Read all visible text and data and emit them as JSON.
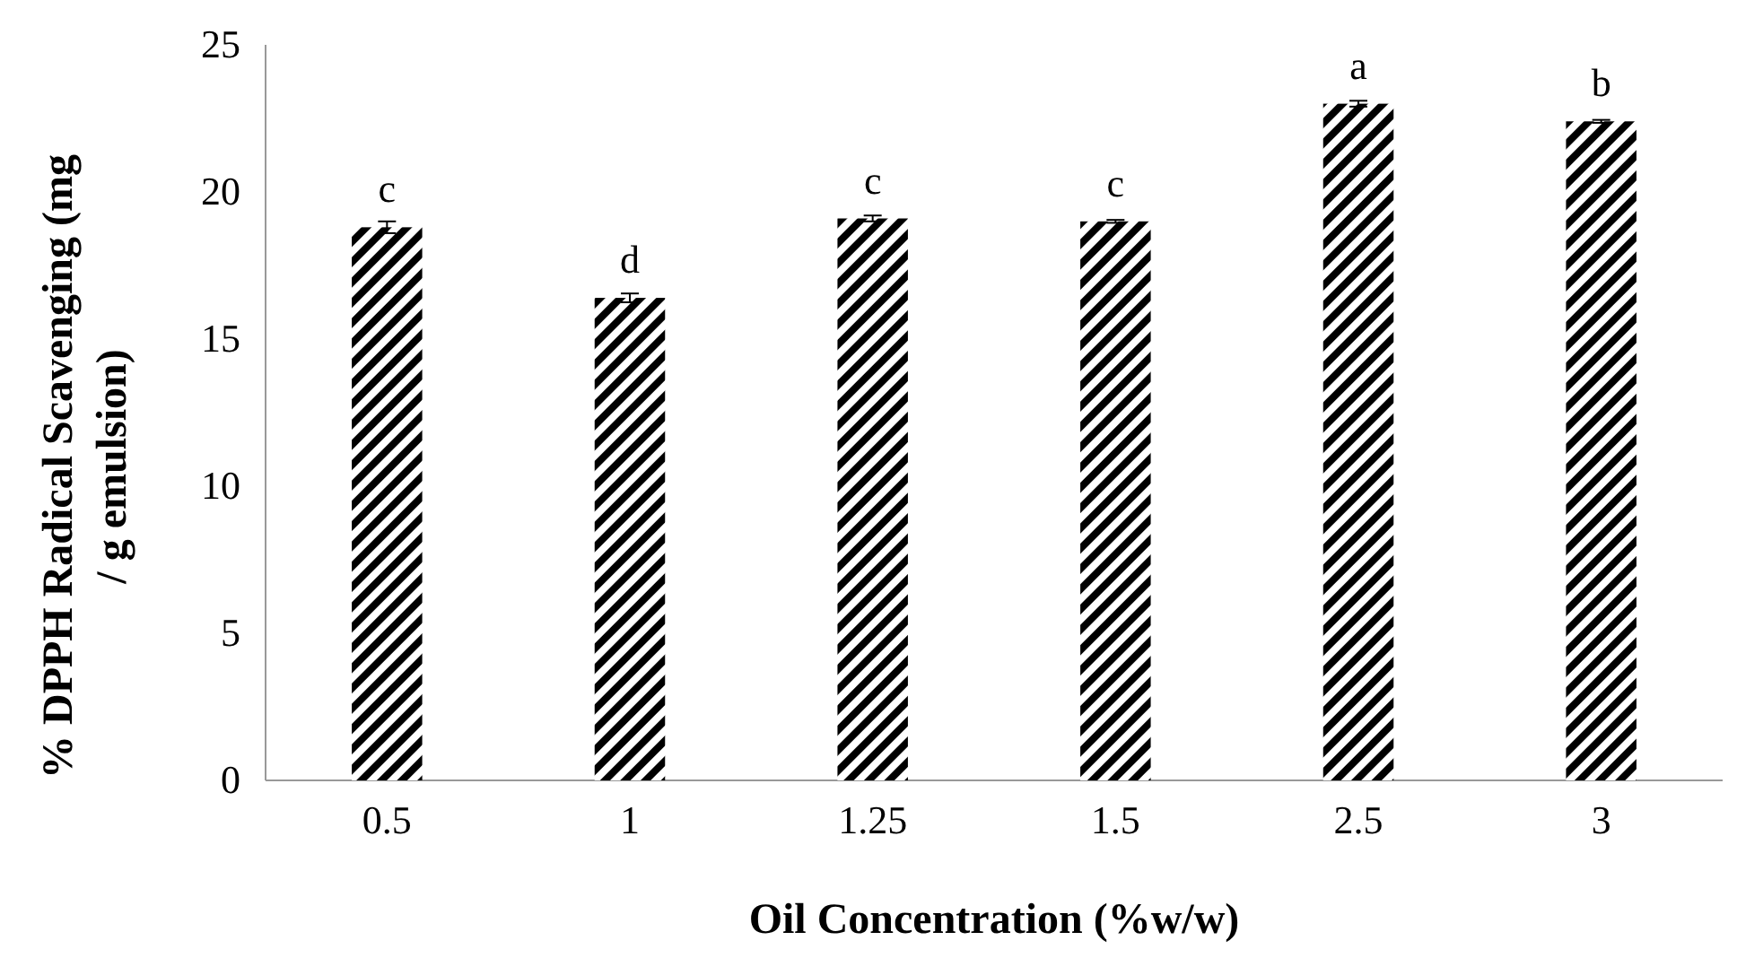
{
  "chart_data": {
    "type": "bar",
    "xlabel": "Oil Concentration (%w/w)",
    "ylabel": "% DPPH Radical Scavenging (mg / g emulsion)",
    "categories": [
      "0.5",
      "1",
      "1.25",
      "1.5",
      "2.5",
      "3"
    ],
    "values": [
      18.8,
      16.4,
      19.1,
      19.0,
      23.0,
      22.4
    ],
    "errors": [
      0.2,
      0.15,
      0.1,
      0.05,
      0.1,
      0.05
    ],
    "color": "#000000",
    "ylim": [
      0,
      25
    ],
    "yticks": [
      0,
      5,
      10,
      15,
      20,
      25
    ],
    "grid": false,
    "annotations": [
      {
        "text": "c",
        "x": "0.5",
        "y": 18.8
      },
      {
        "text": "d",
        "x": "1",
        "y": 16.4
      },
      {
        "text": "c",
        "x": "1.25",
        "y": 19.1
      },
      {
        "text": "c",
        "x": "1.5",
        "y": 19.0
      },
      {
        "text": "a",
        "x": "2.5",
        "y": 23.0
      },
      {
        "text": "b",
        "x": "3",
        "y": 22.4
      }
    ]
  }
}
